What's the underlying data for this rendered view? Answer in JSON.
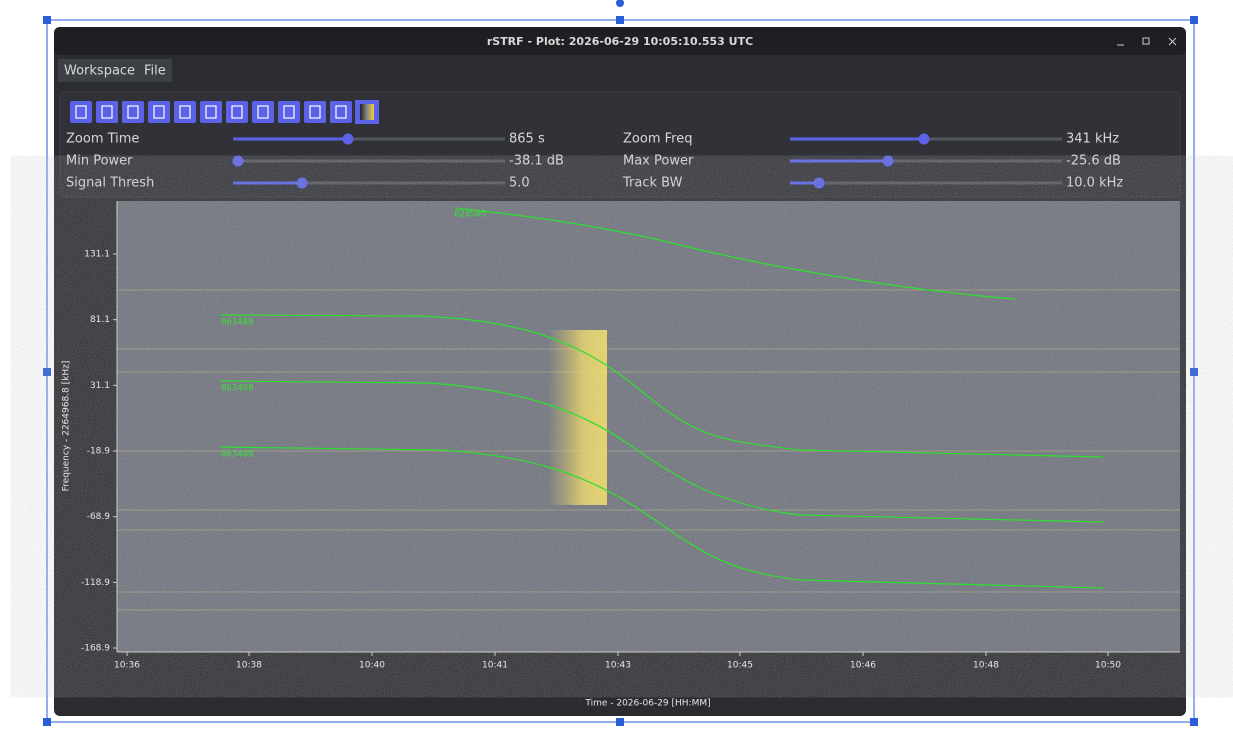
{
  "window": {
    "title": "rSTRF - Plot: 2026-06-29 10:05:10.553 UTC"
  },
  "menu": [
    "Workspace",
    "File"
  ],
  "controls": [
    {
      "label": "Zoom Time",
      "value": "865 s"
    },
    {
      "label": "Zoom Freq",
      "value": "341 kHz"
    },
    {
      "label": "Min Power",
      "value": "-38.1 dB"
    },
    {
      "label": "Max Power",
      "value": "-25.6 dB"
    },
    {
      "label": "Signal Thresh",
      "value": "5.0"
    },
    {
      "label": "Track BW",
      "value": "10.0 kHz"
    }
  ],
  "plot": {
    "y_axis_label": "Frequency - 2264968.8 [kHz]",
    "x_axis_label": "Time - 2026-06-29 [HH:MM]",
    "y_ticks": [
      "131.1",
      "81.1",
      "31.1",
      "-18.9",
      "-68.9",
      "-118.9",
      "-168.9"
    ],
    "x_ticks": [
      "10:36",
      "10:38",
      "10:40",
      "10:41",
      "10:43",
      "10:45",
      "10:46",
      "10:48",
      "10:50"
    ],
    "track_labels": [
      "028505",
      "063488",
      "063488",
      "063488"
    ]
  }
}
